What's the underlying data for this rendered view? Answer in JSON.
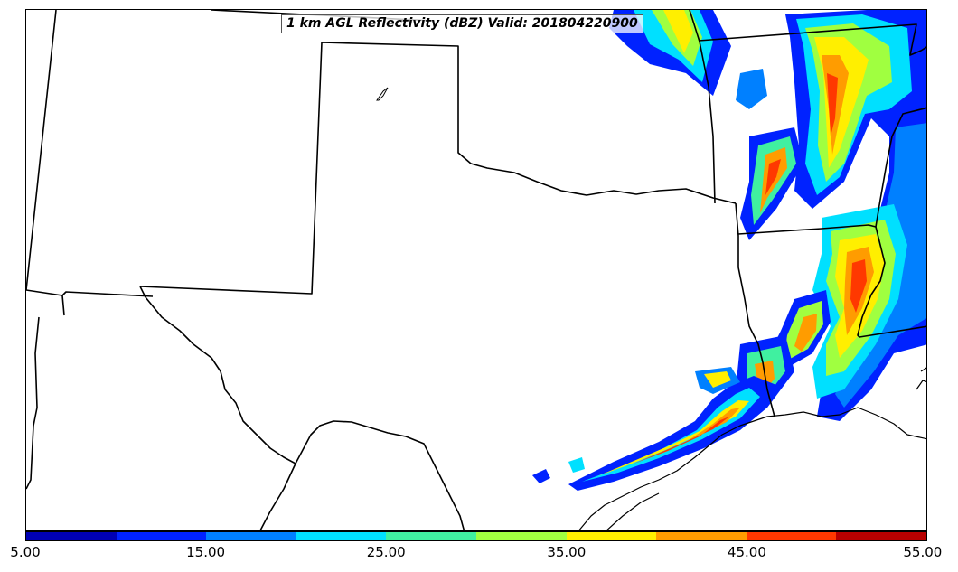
{
  "title": "1 km AGL Reflectivity (dBZ) Valid: 201804220900",
  "colorbar": {
    "colors": [
      "#0000b4",
      "#0022ff",
      "#0080ff",
      "#00e0ff",
      "#40f0a0",
      "#a0ff40",
      "#ffef00",
      "#ff9c00",
      "#ff3800",
      "#b80000"
    ],
    "tick_labels": [
      "5.00",
      "15.00",
      "25.00",
      "35.00",
      "45.00",
      "55.00"
    ]
  }
}
